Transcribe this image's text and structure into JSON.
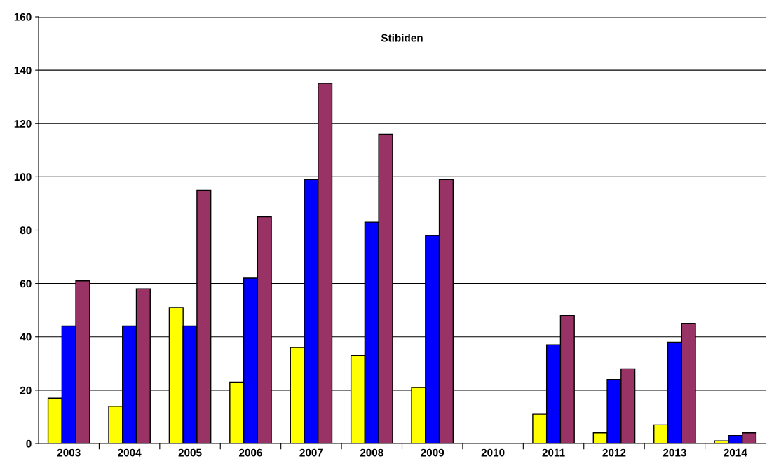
{
  "chart_data": {
    "type": "bar",
    "title": "Stibiden",
    "categories": [
      "2003",
      "2004",
      "2005",
      "2006",
      "2007",
      "2008",
      "2009",
      "2010",
      "2011",
      "2012",
      "2013",
      "2014"
    ],
    "series": [
      {
        "color": "#ffff00",
        "values": [
          17,
          14,
          51,
          23,
          36,
          33,
          21,
          null,
          11,
          4,
          7,
          1
        ]
      },
      {
        "color": "#0000ff",
        "values": [
          44,
          44,
          44,
          62,
          99,
          83,
          78,
          null,
          37,
          24,
          38,
          3
        ]
      },
      {
        "color": "#993366",
        "values": [
          61,
          58,
          95,
          85,
          135,
          116,
          99,
          null,
          48,
          28,
          45,
          4
        ]
      }
    ],
    "ylim": [
      0,
      160
    ],
    "yticks": [
      0,
      20,
      40,
      60,
      80,
      100,
      120,
      140,
      160
    ],
    "grid": "y",
    "legend": false
  }
}
